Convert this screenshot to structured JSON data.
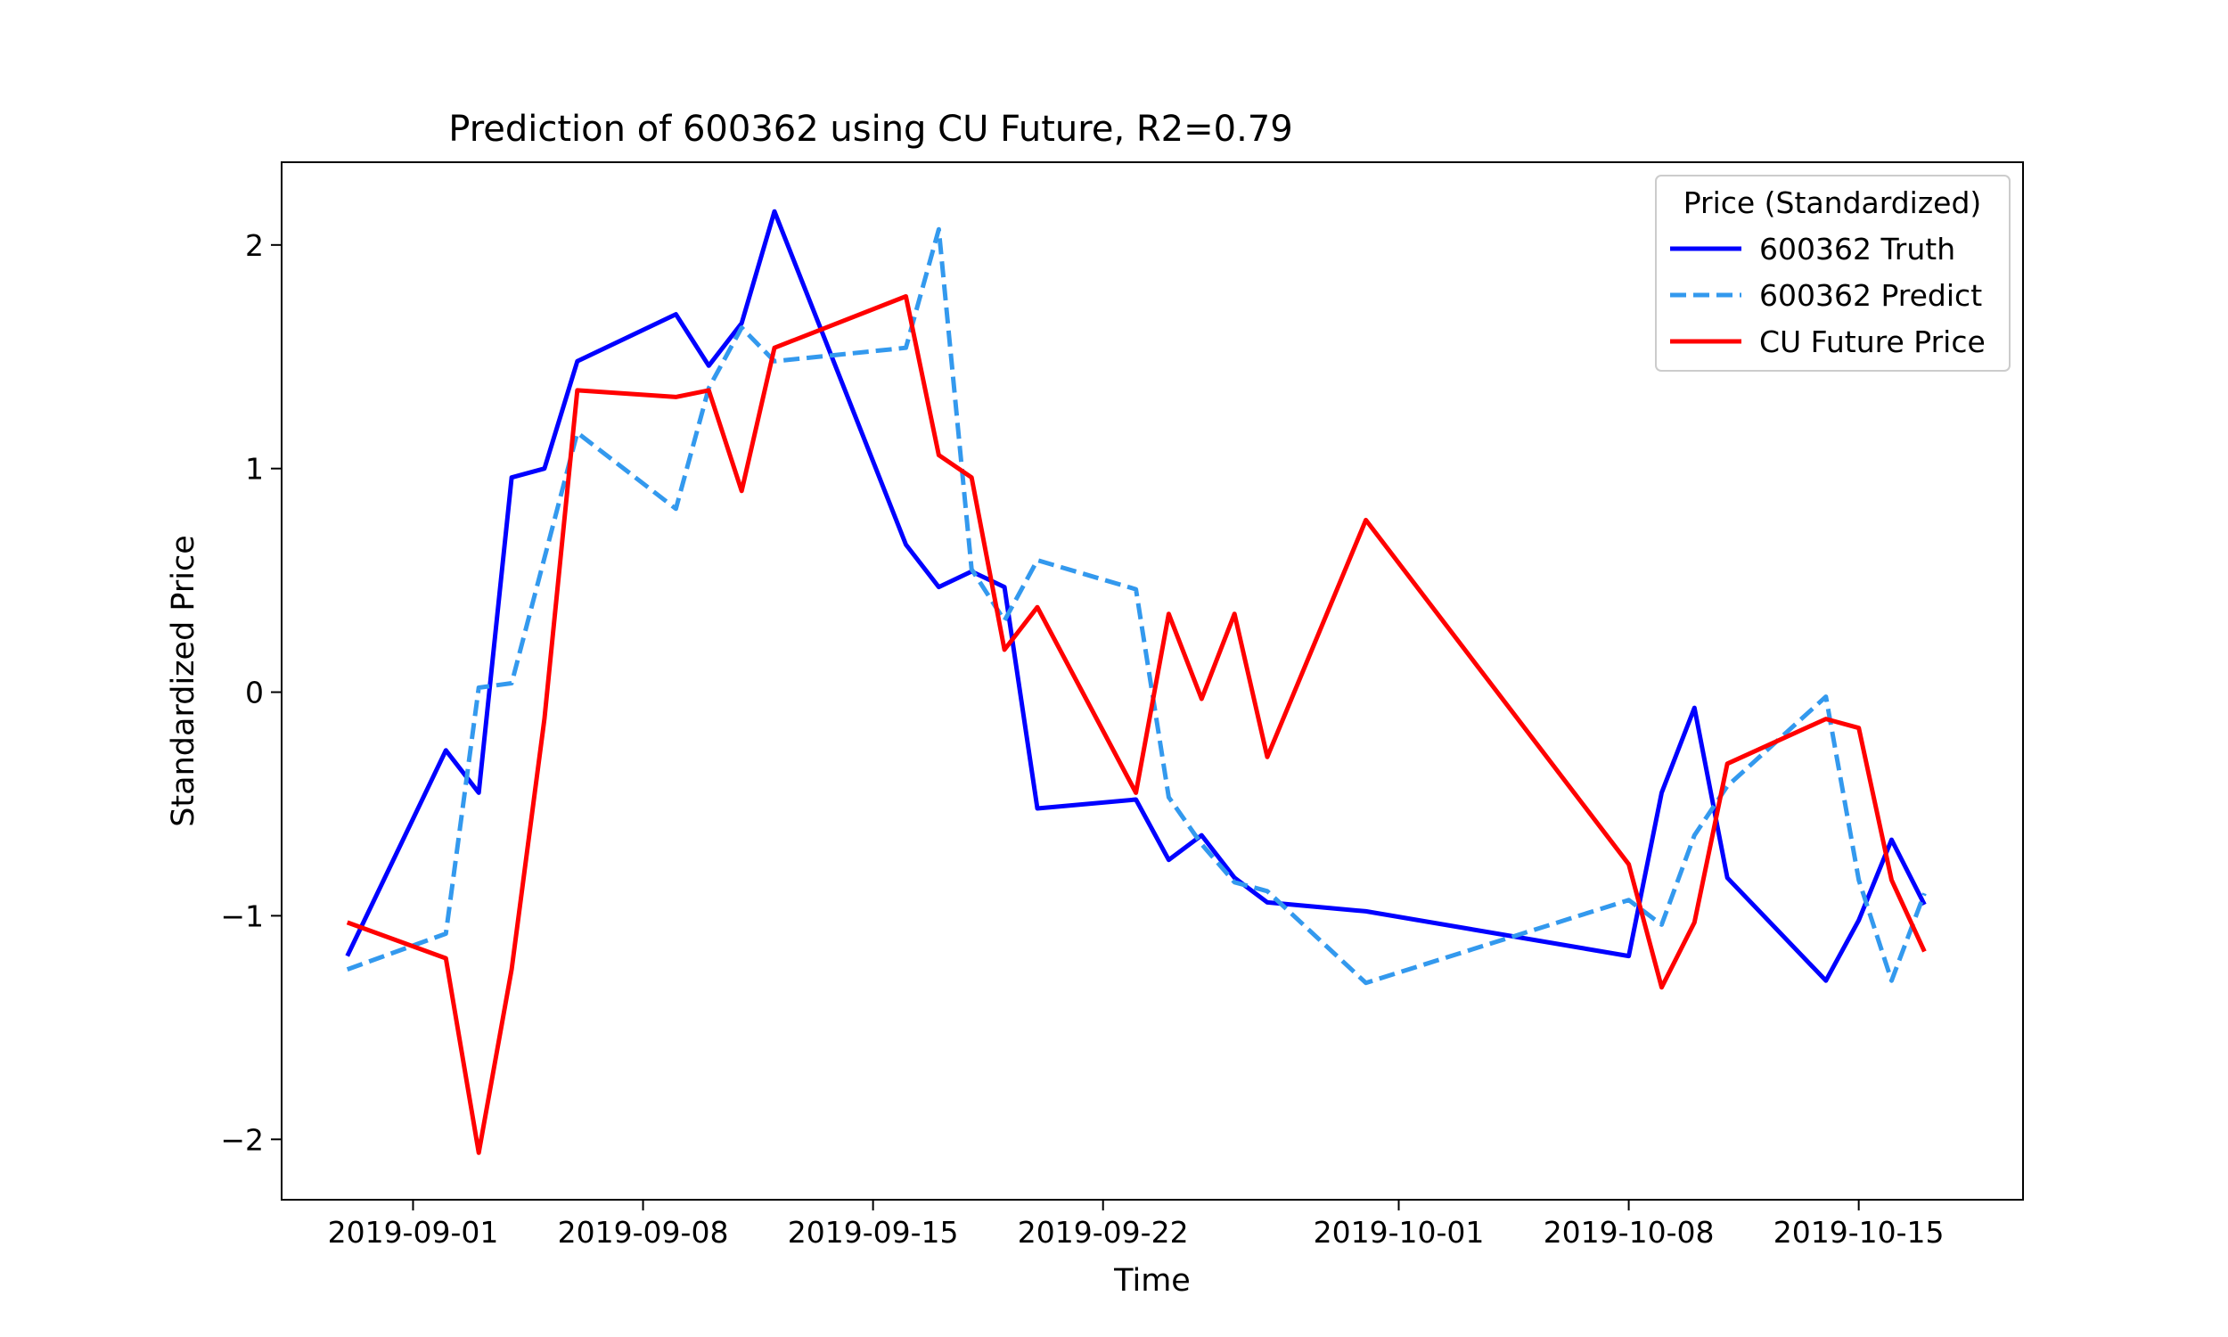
{
  "chart_data": {
    "type": "line",
    "title": "Prediction of 600362 using CU Future, R2=0.79",
    "xlabel": "Time",
    "ylabel": "Standardized Price",
    "x_ticks": [
      "2019-09-01",
      "2019-09-08",
      "2019-09-15",
      "2019-09-22",
      "2019-10-01",
      "2019-10-08",
      "2019-10-15"
    ],
    "y_ticks": [
      "−2",
      "−1",
      "0",
      "1",
      "2"
    ],
    "y_tick_values": [
      -2,
      -1,
      0,
      1,
      2
    ],
    "xlim": [
      "2019-08-28",
      "2019-10-20"
    ],
    "ylim": [
      -2.27,
      2.37
    ],
    "grid": false,
    "legend": {
      "title": "Price (Standardized)",
      "placement": "upper right"
    },
    "x": [
      "2019-08-30",
      "2019-09-02",
      "2019-09-03",
      "2019-09-04",
      "2019-09-05",
      "2019-09-06",
      "2019-09-09",
      "2019-09-10",
      "2019-09-11",
      "2019-09-12",
      "2019-09-16",
      "2019-09-17",
      "2019-09-18",
      "2019-09-19",
      "2019-09-20",
      "2019-09-23",
      "2019-09-24",
      "2019-09-25",
      "2019-09-26",
      "2019-09-27",
      "2019-09-30",
      "2019-10-08",
      "2019-10-09",
      "2019-10-10",
      "2019-10-11",
      "2019-10-14",
      "2019-10-15",
      "2019-10-16",
      "2019-10-17"
    ],
    "series": [
      {
        "name": "600362 Truth",
        "color": "#0000ff",
        "style": "solid",
        "values": [
          -1.18,
          -0.26,
          -0.45,
          0.96,
          1.0,
          1.48,
          1.69,
          1.46,
          1.65,
          2.15,
          0.66,
          0.47,
          0.54,
          0.47,
          -0.52,
          -0.48,
          -0.75,
          -0.64,
          -0.83,
          -0.94,
          -0.98,
          -1.18,
          -0.45,
          -0.07,
          -0.83,
          -1.29,
          -1.02,
          -0.66,
          -0.95
        ]
      },
      {
        "name": "600362 Predict",
        "color": "#3399ee",
        "style": "dashed",
        "values": [
          -1.24,
          -1.08,
          0.02,
          0.04,
          0.6,
          1.16,
          0.82,
          1.36,
          1.63,
          1.48,
          1.54,
          2.07,
          0.55,
          0.32,
          0.59,
          0.46,
          -0.47,
          -0.68,
          -0.85,
          -0.89,
          -1.3,
          -0.93,
          -1.04,
          -0.64,
          -0.42,
          -0.02,
          -0.84,
          -1.29,
          -0.9
        ]
      },
      {
        "name": "CU Future Price",
        "color": "#ff0000",
        "style": "solid",
        "values": [
          -1.03,
          -1.19,
          -2.06,
          -1.24,
          -0.12,
          1.35,
          1.32,
          1.35,
          0.9,
          1.54,
          1.77,
          1.06,
          0.96,
          0.19,
          0.38,
          -0.45,
          0.35,
          -0.03,
          0.35,
          -0.29,
          0.77,
          -0.77,
          -1.32,
          -1.03,
          -0.32,
          -0.12,
          -0.16,
          -0.84,
          -1.16
        ]
      }
    ]
  }
}
